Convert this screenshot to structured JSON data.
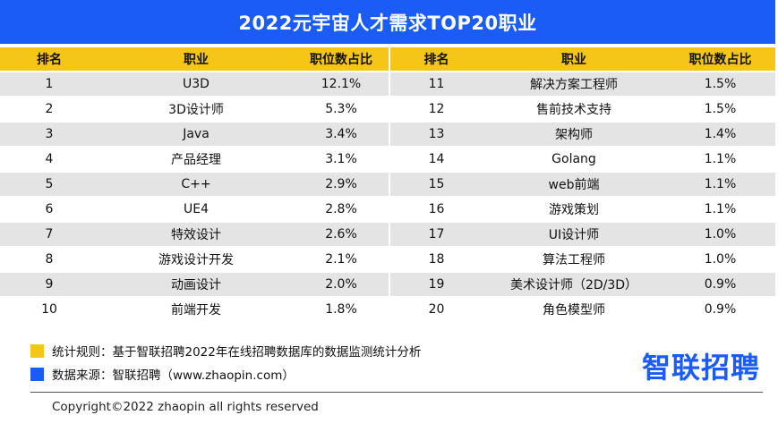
{
  "title": "2022元宇宙人才需求TOP20职业",
  "headers": {
    "rank": "排名",
    "job": "职业",
    "share": "职位数占比"
  },
  "rows": [
    {
      "rank": "1",
      "job": "U3D",
      "share": "12.1%",
      "rank2": "11",
      "job2": "解决方案工程师",
      "share2": "1.5%"
    },
    {
      "rank": "2",
      "job": "3D设计师",
      "share": "5.3%",
      "rank2": "12",
      "job2": "售前技术支持",
      "share2": "1.5%"
    },
    {
      "rank": "3",
      "job": "Java",
      "share": "3.4%",
      "rank2": "13",
      "job2": "架构师",
      "share2": "1.4%"
    },
    {
      "rank": "4",
      "job": "产品经理",
      "share": "3.1%",
      "rank2": "14",
      "job2": "Golang",
      "share2": "1.1%"
    },
    {
      "rank": "5",
      "job": "C++",
      "share": "2.9%",
      "rank2": "15",
      "job2": "web前端",
      "share2": "1.1%"
    },
    {
      "rank": "6",
      "job": "UE4",
      "share": "2.8%",
      "rank2": "16",
      "job2": "游戏策划",
      "share2": "1.1%"
    },
    {
      "rank": "7",
      "job": "特效设计",
      "share": "2.6%",
      "rank2": "17",
      "job2": "UI设计师",
      "share2": "1.0%"
    },
    {
      "rank": "8",
      "job": "游戏设计开发",
      "share": "2.1%",
      "rank2": "18",
      "job2": "算法工程师",
      "share2": "1.0%"
    },
    {
      "rank": "9",
      "job": "动画设计",
      "share": "2.0%",
      "rank2": "19",
      "job2": "美术设计师（2D/3D）",
      "share2": "0.9%"
    },
    {
      "rank": "10",
      "job": "前端开发",
      "share": "1.8%",
      "rank2": "20",
      "job2": "角色模型师",
      "share2": "0.9%"
    }
  ],
  "legend": [
    {
      "text": "统计规则：基于智联招聘2022年在线招聘数据库的数据监测统计分析",
      "color": "#f5c518"
    },
    {
      "text": "数据来源：智联招聘（www.zhaopin.com）",
      "color": "#1a5cf5"
    }
  ],
  "logo": "智联招聘",
  "copyright": "Copyright©2022 zhaopin all rights reserved",
  "colors": {
    "brand_blue": "#1a5cf5",
    "header_yellow": "#f5c518",
    "row_gray": "#e4e4e4"
  }
}
